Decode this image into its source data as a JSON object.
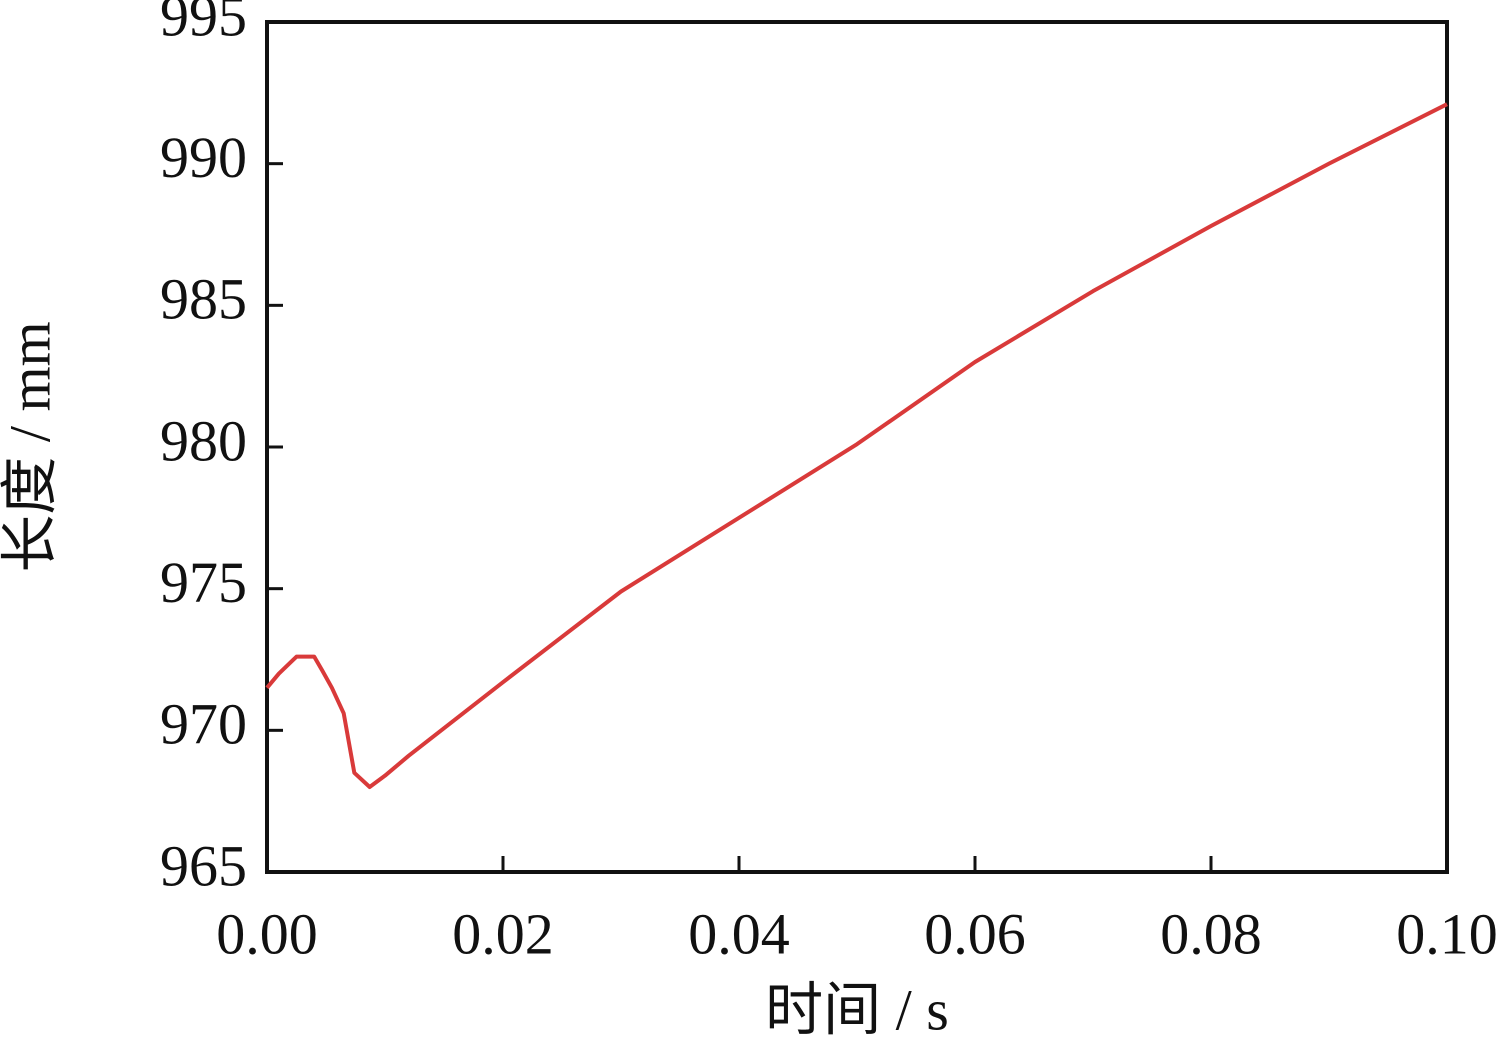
{
  "chart_data": {
    "type": "line",
    "x_label": "时间 / s",
    "y_label": "长度 / mm",
    "xlim": [
      0,
      0.1
    ],
    "xticks": [
      {
        "value": 0,
        "label": "0.00"
      },
      0.02,
      0.04,
      0.06,
      0.08,
      {
        "value": 0.1,
        "label": "0.10"
      }
    ],
    "ylim": [
      965,
      995
    ],
    "yticks": [
      965,
      970,
      975,
      980,
      985,
      990,
      995
    ],
    "grid": false,
    "series": [
      {
        "color": "#d93a3a",
        "x": [
          0,
          0.001,
          0.002,
          0.0025,
          0.004,
          0.0047,
          0.0055,
          0.0065,
          0.0074,
          0.0087,
          0.01,
          0.012,
          0.02,
          0.03,
          0.04,
          0.05,
          0.06,
          0.07,
          0.08,
          0.09,
          0.1
        ],
        "values": [
          971.5,
          972.0,
          972.4,
          972.6,
          972.6,
          972.1,
          971.5,
          970.6,
          968.5,
          968.0,
          968.4,
          969.1,
          971.7,
          974.9,
          977.5,
          980.1,
          983.0,
          985.5,
          987.8,
          990.0,
          992.1
        ]
      }
    ]
  }
}
